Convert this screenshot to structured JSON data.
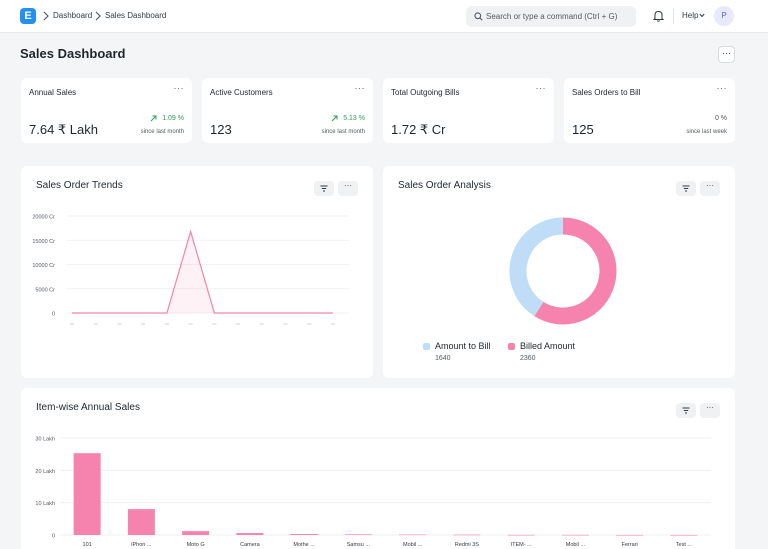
{
  "navbar": {
    "logo_letter": "E",
    "breadcrumbs": [
      "Dashboard",
      "Sales Dashboard"
    ],
    "search_placeholder": "Search or type a command (Ctrl + G)",
    "help_label": "Help",
    "avatar_initial": "P"
  },
  "page": {
    "title": "Sales Dashboard",
    "menu_label": "···"
  },
  "number_cards": [
    {
      "title": "Annual Sales",
      "value": "7.64 ₹ Lakh",
      "change": "1.09 %",
      "since": "since last month",
      "trend": "up"
    },
    {
      "title": "Active Customers",
      "value": "123",
      "change": "5.13 %",
      "since": "since last month",
      "trend": "up"
    },
    {
      "title": "Total Outgoing Bills",
      "value": "1.72 ₹ Cr",
      "change": "",
      "since": "",
      "trend": "none"
    },
    {
      "title": "Sales Orders to Bill",
      "value": "125",
      "change": "0 %",
      "since": "since last week",
      "trend": "flat"
    }
  ],
  "card_menu_label": "···",
  "colors": {
    "accent": "#2490ef",
    "pink": "#f683ae",
    "light_blue": "#bfddf6",
    "green": "#2e9d58"
  },
  "charts": {
    "trends_title": "Sales Order Trends",
    "analysis_title": "Sales Order Analysis",
    "itemwise_title": "Item-wise Annual Sales"
  },
  "chart_data": [
    {
      "type": "line",
      "title": "Sales Order Trends",
      "y_ticks": [
        "20000 Cr",
        "15000 Cr",
        "10000 Cr",
        "5000 Cr",
        "0"
      ],
      "ylim": [
        0,
        20000
      ],
      "x_count": 12,
      "values": [
        0,
        0,
        0,
        0,
        0,
        16800,
        0,
        0,
        0,
        0,
        0,
        0
      ],
      "color": "#f683ae"
    },
    {
      "type": "pie",
      "title": "Sales Order Analysis",
      "labels": [
        "Amount to Bill",
        "Billed Amount"
      ],
      "values": [
        1640,
        2360
      ],
      "colors": [
        "#bfddf6",
        "#f683ae"
      ]
    },
    {
      "type": "bar",
      "title": "Item-wise Annual Sales",
      "y_ticks": [
        "30 Lakh",
        "20 Lakh",
        "10 Lakh",
        "0"
      ],
      "ylim": [
        0,
        30
      ],
      "categories": [
        "101",
        "iPhon ...",
        "Moto G",
        "Camera",
        "Mothe ...",
        "Samsu ...",
        "Mobil ...",
        "Redmi 3S",
        "ITEM- ...",
        "Mobil ...",
        "Ferrari",
        "Test ..."
      ],
      "values": [
        25.3,
        8.0,
        1.2,
        0.6,
        0.3,
        0.2,
        0.15,
        0.1,
        0.05,
        0.05,
        0.02,
        0.02
      ],
      "color": "#f683ae"
    }
  ]
}
